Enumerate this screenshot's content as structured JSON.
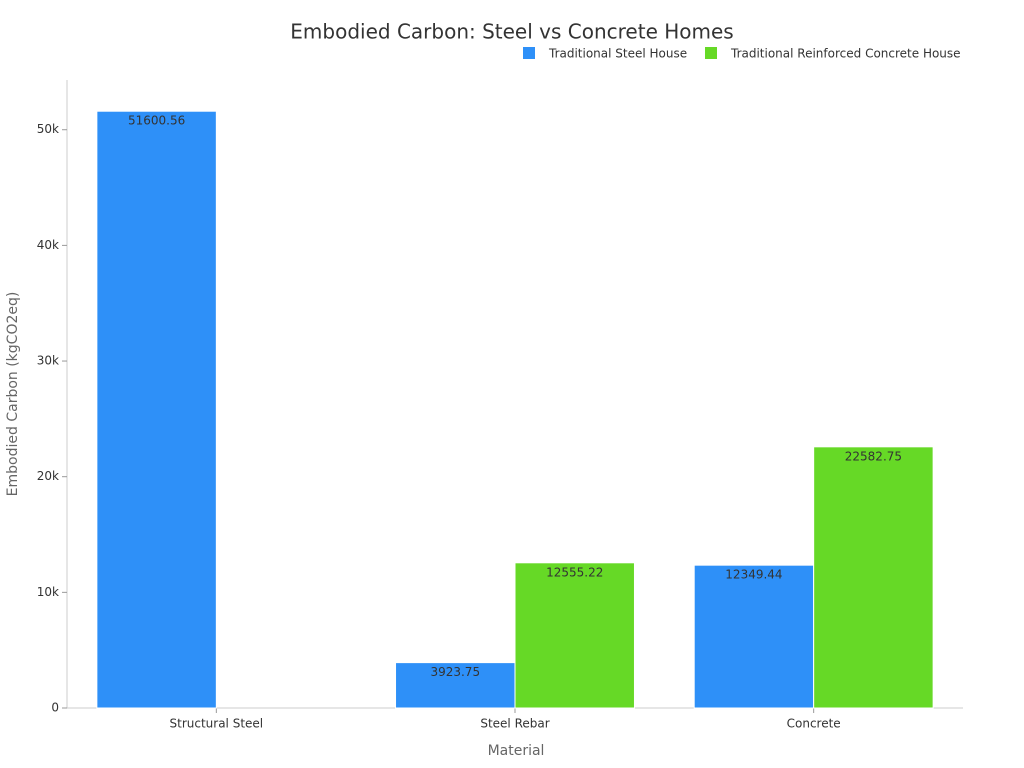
{
  "chart_data": {
    "type": "bar",
    "title": "Embodied Carbon: Steel vs Concrete Homes",
    "x_label": "Material",
    "y_label": "Embodied Carbon (kgCO2eq)",
    "categories": [
      "Structural Steel",
      "Steel Rebar",
      "Concrete"
    ],
    "series": [
      {
        "name": "Traditional Steel House",
        "color": "#2e90f8",
        "values": [
          51600.56,
          3923.75,
          12349.44
        ]
      },
      {
        "name": "Traditional Reinforced Concrete House",
        "color": "#66d926",
        "values": [
          null,
          12555.22,
          22582.75
        ]
      }
    ],
    "ylim": [
      0,
      54300
    ],
    "yticks": [
      0,
      {
        "value": 10000,
        "label": "10k"
      },
      {
        "value": 20000,
        "label": "20k"
      },
      {
        "value": 30000,
        "label": "30k"
      },
      {
        "value": 40000,
        "label": "40k"
      },
      {
        "value": 50000,
        "label": "50k"
      }
    ],
    "grid": false,
    "legend": "top-right"
  }
}
